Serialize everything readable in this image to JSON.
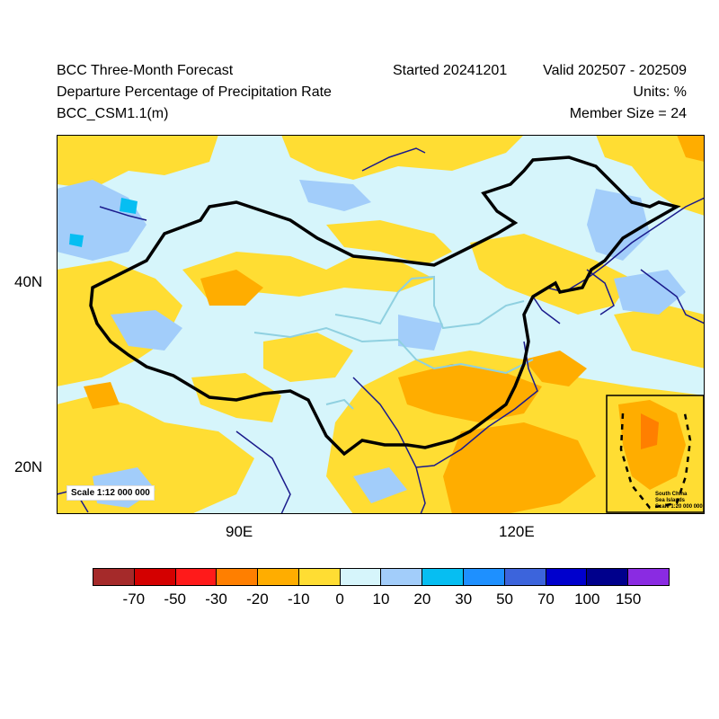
{
  "header": {
    "title": "BCC Three-Month Forecast",
    "subtitle": "Departure Percentage of Precipitation Rate",
    "model": "BCC_CSM1.1(m)",
    "started": "Started 20241201",
    "valid": "Valid 202507 - 202509",
    "units": "Units: %",
    "members": "Member Size = 24"
  },
  "map": {
    "lat_labels": [
      "40N",
      "20N"
    ],
    "lon_labels": [
      "90E",
      "120E"
    ],
    "scale_main": "Scale 1:12 000 000",
    "inset": {
      "title_line1": "South China",
      "title_line2": "Sea Islands",
      "scale": "Scale 1:20 000 000"
    },
    "colors": {
      "ocean_bg": "#d6f5fb",
      "border_country": "#000000",
      "coast": "#1a1a8c",
      "river": "#8fd0e0"
    }
  },
  "legend": {
    "labels": [
      "-70",
      "-50",
      "-30",
      "-20",
      "-10",
      "0",
      "10",
      "20",
      "30",
      "50",
      "70",
      "100",
      "150"
    ],
    "colors": [
      "#a52a2a",
      "#d40000",
      "#ff1a1a",
      "#ff7f00",
      "#ffad00",
      "#ffdd33",
      "#d6f5fb",
      "#a2cdfa",
      "#06bef2",
      "#1e90ff",
      "#3c64dc",
      "#0000cd",
      "#00008c",
      "#8a2be2"
    ]
  }
}
